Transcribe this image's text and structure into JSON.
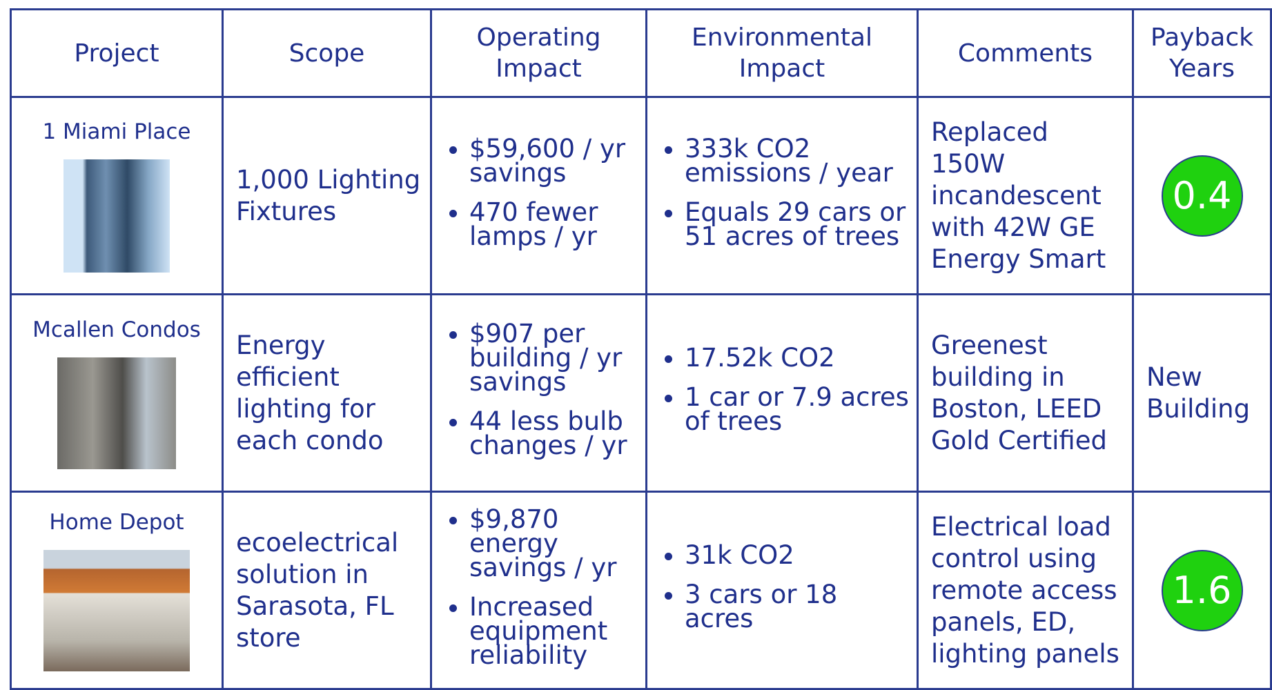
{
  "table": {
    "header": [
      "Project",
      "Scope",
      "Operating Impact",
      "Environmental Impact",
      "Comments",
      "Payback Years"
    ],
    "rows": [
      {
        "project": "1 Miami Place",
        "scope": "1,000 Lighting Fixtures",
        "operating": [
          "$59,600 / yr savings",
          "470 fewer lamps / yr"
        ],
        "environmental": [
          "333k CO2 emissions / year",
          "Equals 29 cars or 51 acres of trees"
        ],
        "comments": "Replaced 150W incandescent with 42W GE Energy Smart",
        "payback": "0.4",
        "payback_badge": true
      },
      {
        "project": "Mcallen Condos",
        "scope": "Energy efficient lighting for each condo",
        "operating": [
          "$907 per building / yr savings",
          "44 less bulb changes / yr"
        ],
        "environmental": [
          "17.52k CO2",
          "1 car or 7.9 acres of trees"
        ],
        "comments": "Greenest building in Boston, LEED Gold Certified",
        "payback": "New Building",
        "payback_badge": false
      },
      {
        "project": "Home Depot",
        "scope": "ecoelectrical solution in Sarasota, FL store",
        "operating": [
          "$9,870 energy savings / yr",
          "Increased equipment reliability"
        ],
        "environmental": [
          "31k CO2",
          "3 cars or 18 acres"
        ],
        "comments": "Electrical load control using remote access panels, ED, lighting panels",
        "payback": "1.6",
        "payback_badge": true
      }
    ]
  }
}
